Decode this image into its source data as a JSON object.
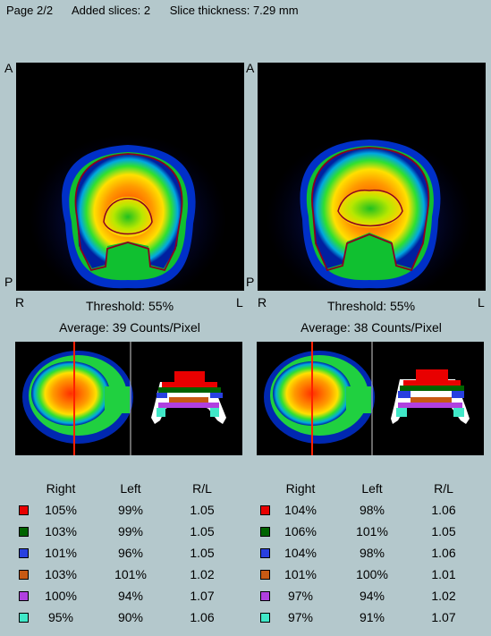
{
  "header": {
    "page": "Page 2/2",
    "added_slices": "Added slices: 2",
    "slice_thickness": "Slice thickness: 7.29 mm"
  },
  "panels": [
    {
      "orientation": {
        "top": "A",
        "bottom": "P",
        "left": "R",
        "right": "L"
      },
      "threshold": "Threshold: 55%",
      "average": "Average: 39 Counts/Pixel",
      "table": {
        "headers": [
          "Right",
          "Left",
          "R/L"
        ],
        "rows": [
          {
            "color": "#e80000",
            "right": "105%",
            "left": "99%",
            "rl": "1.05"
          },
          {
            "color": "#006400",
            "right": "103%",
            "left": "99%",
            "rl": "1.05"
          },
          {
            "color": "#2840e0",
            "right": "101%",
            "left": "96%",
            "rl": "1.05"
          },
          {
            "color": "#c85a14",
            "right": "103%",
            "left": "101%",
            "rl": "1.02"
          },
          {
            "color": "#b040e0",
            "right": "100%",
            "left": "94%",
            "rl": "1.07"
          },
          {
            "color": "#40e8c8",
            "right": "95%",
            "left": "90%",
            "rl": "1.06"
          }
        ]
      }
    },
    {
      "orientation": {
        "top": "A",
        "bottom": "P",
        "left": "R",
        "right": "L"
      },
      "threshold": "Threshold: 55%",
      "average": "Average: 38 Counts/Pixel",
      "table": {
        "headers": [
          "Right",
          "Left",
          "R/L"
        ],
        "rows": [
          {
            "color": "#e80000",
            "right": "104%",
            "left": "98%",
            "rl": "1.06"
          },
          {
            "color": "#006400",
            "right": "106%",
            "left": "101%",
            "rl": "1.05"
          },
          {
            "color": "#2840e0",
            "right": "104%",
            "left": "98%",
            "rl": "1.06"
          },
          {
            "color": "#c85a14",
            "right": "101%",
            "left": "100%",
            "rl": "1.01"
          },
          {
            "color": "#b040e0",
            "right": "97%",
            "left": "94%",
            "rl": "1.02"
          },
          {
            "color": "#40e8c8",
            "right": "97%",
            "left": "91%",
            "rl": "1.07"
          }
        ]
      }
    }
  ]
}
